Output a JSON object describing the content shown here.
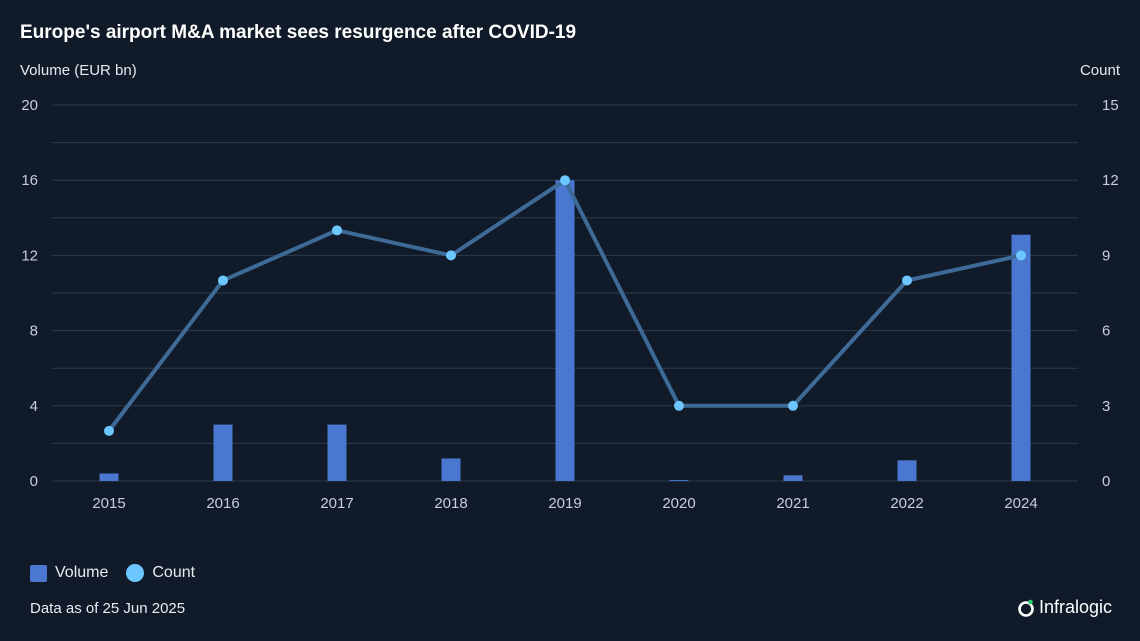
{
  "title": "Europe's airport M&A market sees resurgence after COVID-19",
  "footnote": "Data as of 25 Jun 2025",
  "brand": "Infralogic",
  "colors": {
    "background": "#111a28",
    "bar": "#4a78d0",
    "line": "#3d6a96",
    "dot": "#6cc6ff",
    "grid": "#2d3a4c",
    "axis_text": "#c6cfdb"
  },
  "chart_data": {
    "type": "bar",
    "categories": [
      "2015",
      "2016",
      "2017",
      "2018",
      "2019",
      "2020",
      "2021",
      "2022",
      "2024"
    ],
    "series": [
      {
        "name": "Volume",
        "type": "bar",
        "axis": "left",
        "values": [
          0.4,
          3.0,
          3.0,
          1.2,
          16.0,
          0.05,
          0.3,
          1.1,
          13.1
        ]
      },
      {
        "name": "Count",
        "type": "line",
        "axis": "right",
        "values": [
          2,
          8,
          10,
          9,
          12,
          3,
          3,
          8,
          9
        ]
      }
    ],
    "ylabel": "Volume (EUR bn)",
    "y2label": "Count",
    "ylim": [
      0,
      20
    ],
    "y2lim": [
      0,
      15
    ],
    "yticks": [
      "0",
      "4",
      "8",
      "12",
      "16",
      "20"
    ],
    "y2ticks": [
      "0",
      "3",
      "6",
      "9",
      "12",
      "15"
    ],
    "grid": true,
    "legend": "bottom-left"
  }
}
